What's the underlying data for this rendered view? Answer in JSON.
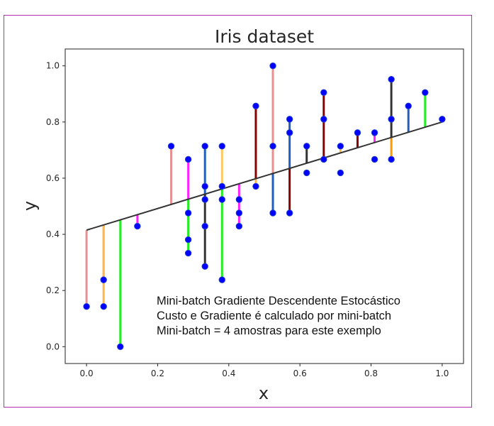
{
  "chart_data": {
    "type": "scatter",
    "title": "Iris dataset",
    "xlabel": "x",
    "ylabel": "y",
    "xlim": [
      -0.06,
      1.06
    ],
    "ylim": [
      -0.06,
      1.06
    ],
    "xticks": [
      "0.0",
      "0.2",
      "0.4",
      "0.6",
      "0.8",
      "1.0"
    ],
    "yticks": [
      "0.0",
      "0.2",
      "0.4",
      "0.6",
      "0.8",
      "1.0"
    ],
    "grid": false,
    "legend": "none",
    "point_color": "#0000ff",
    "point_edge_color": "#1f3fd0",
    "fit_line": {
      "intercept": 0.415,
      "slope": 0.385,
      "color": "#333333"
    },
    "points": [
      [
        0.0,
        0.143
      ],
      [
        0.048,
        0.143
      ],
      [
        0.048,
        0.238
      ],
      [
        0.095,
        0.0
      ],
      [
        0.143,
        0.429
      ],
      [
        0.238,
        0.714
      ],
      [
        0.286,
        0.667
      ],
      [
        0.286,
        0.476
      ],
      [
        0.286,
        0.381
      ],
      [
        0.286,
        0.333
      ],
      [
        0.333,
        0.714
      ],
      [
        0.333,
        0.571
      ],
      [
        0.333,
        0.524
      ],
      [
        0.333,
        0.429
      ],
      [
        0.333,
        0.286
      ],
      [
        0.381,
        0.714
      ],
      [
        0.381,
        0.571
      ],
      [
        0.381,
        0.524
      ],
      [
        0.381,
        0.238
      ],
      [
        0.429,
        0.524
      ],
      [
        0.429,
        0.476
      ],
      [
        0.429,
        0.429
      ],
      [
        0.476,
        0.857
      ],
      [
        0.476,
        0.571
      ],
      [
        0.524,
        1.0
      ],
      [
        0.524,
        0.714
      ],
      [
        0.524,
        0.476
      ],
      [
        0.571,
        0.81
      ],
      [
        0.571,
        0.762
      ],
      [
        0.571,
        0.476
      ],
      [
        0.619,
        0.714
      ],
      [
        0.619,
        0.619
      ],
      [
        0.667,
        0.905
      ],
      [
        0.667,
        0.81
      ],
      [
        0.667,
        0.667
      ],
      [
        0.714,
        0.714
      ],
      [
        0.714,
        0.619
      ],
      [
        0.762,
        0.762
      ],
      [
        0.81,
        0.762
      ],
      [
        0.81,
        0.667
      ],
      [
        0.857,
        0.952
      ],
      [
        0.857,
        0.81
      ],
      [
        0.857,
        0.667
      ],
      [
        0.905,
        0.857
      ],
      [
        0.952,
        0.905
      ],
      [
        1.0,
        0.81
      ]
    ],
    "residuals": [
      {
        "x": 0.0,
        "y": 0.143,
        "color": "#e89090"
      },
      {
        "x": 0.048,
        "y": 0.143,
        "color": "#ffb64a"
      },
      {
        "x": 0.048,
        "y": 0.238,
        "color": "#ffb64a"
      },
      {
        "x": 0.095,
        "y": 0.0,
        "color": "#22ee22"
      },
      {
        "x": 0.143,
        "y": 0.429,
        "color": "#ff22ff"
      },
      {
        "x": 0.238,
        "y": 0.714,
        "color": "#e89090"
      },
      {
        "x": 0.286,
        "y": 0.667,
        "color": "#ff22ff"
      },
      {
        "x": 0.286,
        "y": 0.333,
        "color": "#22ee22"
      },
      {
        "x": 0.333,
        "y": 0.714,
        "color": "#1f5fbf"
      },
      {
        "x": 0.333,
        "y": 0.286,
        "color": "#333333"
      },
      {
        "x": 0.381,
        "y": 0.714,
        "color": "#ffc860"
      },
      {
        "x": 0.381,
        "y": 0.238,
        "color": "#22ee22"
      },
      {
        "x": 0.429,
        "y": 0.429,
        "color": "#ff22ff"
      },
      {
        "x": 0.476,
        "y": 0.857,
        "color": "#8b0000"
      },
      {
        "x": 0.476,
        "y": 0.571,
        "color": "#ffb64a"
      },
      {
        "x": 0.524,
        "y": 1.0,
        "color": "#e89090"
      },
      {
        "x": 0.524,
        "y": 0.476,
        "color": "#1f5fbf"
      },
      {
        "x": 0.571,
        "y": 0.81,
        "color": "#1f5fbf"
      },
      {
        "x": 0.571,
        "y": 0.476,
        "color": "#8b0000"
      },
      {
        "x": 0.619,
        "y": 0.714,
        "color": "#333333"
      },
      {
        "x": 0.667,
        "y": 0.905,
        "color": "#8b0000"
      },
      {
        "x": 0.714,
        "y": 0.714,
        "color": "#ffb64a"
      },
      {
        "x": 0.762,
        "y": 0.762,
        "color": "#8b0000"
      },
      {
        "x": 0.81,
        "y": 0.762,
        "color": "#ff22ff"
      },
      {
        "x": 0.857,
        "y": 0.952,
        "color": "#333333"
      },
      {
        "x": 0.857,
        "y": 0.667,
        "color": "#ff9900"
      },
      {
        "x": 0.905,
        "y": 0.857,
        "color": "#1f5fbf"
      },
      {
        "x": 0.952,
        "y": 0.905,
        "color": "#22ee22"
      }
    ],
    "annotations": [
      "Mini-batch Gradiente Descendente Estocástico",
      "Custo e Gradiente é calculado por mini-batch",
      "Mini-batch = 4 amostras para este exemplo"
    ]
  }
}
